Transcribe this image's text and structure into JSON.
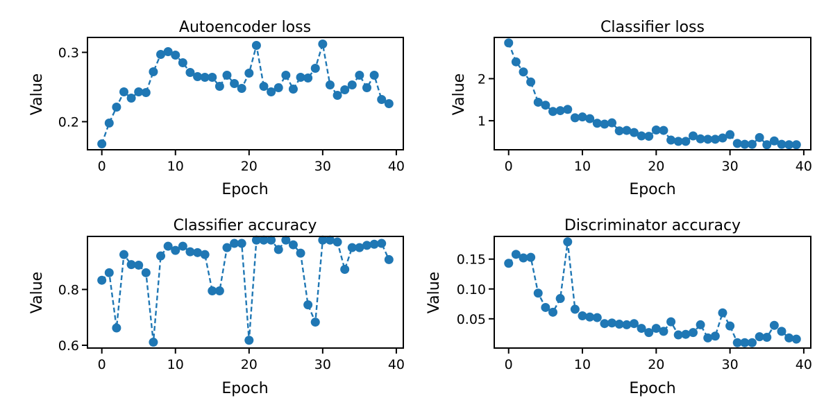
{
  "figure": {
    "background": "#ffffff"
  },
  "chart_data": [
    {
      "type": "line",
      "title": "Autoencoder loss",
      "xlabel": "Epoch",
      "ylabel": "Value",
      "xlim": [
        -1.95,
        40.95
      ],
      "ylim": [
        0.1595,
        0.3215
      ],
      "xticks": [
        0,
        10,
        20,
        30,
        40
      ],
      "xtick_labels": [
        "0",
        "10",
        "20",
        "30",
        "40"
      ],
      "yticks": [
        0.2,
        0.3
      ],
      "ytick_labels": [
        "0.2",
        "0.3"
      ],
      "color": "#1f77b4",
      "line_style": "dashed",
      "marker": "circle",
      "x": [
        0,
        1,
        2,
        3,
        4,
        5,
        6,
        7,
        8,
        9,
        10,
        11,
        12,
        13,
        14,
        15,
        16,
        17,
        18,
        19,
        20,
        21,
        22,
        23,
        24,
        25,
        26,
        27,
        28,
        29,
        30,
        31,
        32,
        33,
        34,
        35,
        36,
        37,
        38,
        39
      ],
      "values": [
        0.168,
        0.198,
        0.221,
        0.243,
        0.234,
        0.243,
        0.242,
        0.272,
        0.297,
        0.301,
        0.296,
        0.285,
        0.271,
        0.265,
        0.264,
        0.264,
        0.251,
        0.267,
        0.255,
        0.248,
        0.27,
        0.31,
        0.251,
        0.243,
        0.249,
        0.267,
        0.247,
        0.264,
        0.263,
        0.277,
        0.312,
        0.253,
        0.238,
        0.246,
        0.253,
        0.267,
        0.249,
        0.267,
        0.232,
        0.226
      ]
    },
    {
      "type": "line",
      "title": "Classifier loss",
      "xlabel": "Epoch",
      "ylabel": "Value",
      "xlim": [
        -1.95,
        40.95
      ],
      "ylim": [
        0.31,
        2.98
      ],
      "xticks": [
        0,
        10,
        20,
        30,
        40
      ],
      "xtick_labels": [
        "0",
        "10",
        "20",
        "30",
        "40"
      ],
      "yticks": [
        1,
        2
      ],
      "ytick_labels": [
        "1",
        "2"
      ],
      "color": "#1f77b4",
      "line_style": "dashed",
      "marker": "circle",
      "x": [
        0,
        1,
        2,
        3,
        4,
        5,
        6,
        7,
        8,
        9,
        10,
        11,
        12,
        13,
        14,
        15,
        16,
        17,
        18,
        19,
        20,
        21,
        22,
        23,
        24,
        25,
        26,
        27,
        28,
        29,
        30,
        31,
        32,
        33,
        34,
        35,
        36,
        37,
        38,
        39
      ],
      "values": [
        2.85,
        2.4,
        2.16,
        1.92,
        1.44,
        1.37,
        1.22,
        1.24,
        1.27,
        1.07,
        1.09,
        1.05,
        0.94,
        0.92,
        0.95,
        0.76,
        0.77,
        0.72,
        0.64,
        0.63,
        0.78,
        0.77,
        0.54,
        0.51,
        0.51,
        0.64,
        0.57,
        0.56,
        0.56,
        0.59,
        0.67,
        0.46,
        0.44,
        0.44,
        0.6,
        0.43,
        0.52,
        0.44,
        0.43,
        0.43
      ]
    },
    {
      "type": "line",
      "title": "Classifier accuracy",
      "xlabel": "Epoch",
      "ylabel": "Value",
      "xlim": [
        -1.95,
        40.95
      ],
      "ylim": [
        0.59,
        0.99
      ],
      "xticks": [
        0,
        10,
        20,
        30,
        40
      ],
      "xtick_labels": [
        "0",
        "10",
        "20",
        "30",
        "40"
      ],
      "yticks": [
        0.6,
        0.8
      ],
      "ytick_labels": [
        "0.6",
        "0.8"
      ],
      "color": "#1f77b4",
      "line_style": "dashed",
      "marker": "circle",
      "x": [
        0,
        1,
        2,
        3,
        4,
        5,
        6,
        7,
        8,
        9,
        10,
        11,
        12,
        13,
        14,
        15,
        16,
        17,
        18,
        19,
        20,
        21,
        22,
        23,
        24,
        25,
        26,
        27,
        28,
        29,
        30,
        31,
        32,
        33,
        34,
        35,
        36,
        37,
        38,
        39
      ],
      "values": [
        0.833,
        0.86,
        0.662,
        0.925,
        0.889,
        0.887,
        0.86,
        0.611,
        0.92,
        0.955,
        0.94,
        0.955,
        0.935,
        0.932,
        0.925,
        0.795,
        0.795,
        0.95,
        0.965,
        0.965,
        0.618,
        0.977,
        0.977,
        0.977,
        0.943,
        0.977,
        0.96,
        0.93,
        0.745,
        0.683,
        0.977,
        0.977,
        0.97,
        0.872,
        0.95,
        0.95,
        0.958,
        0.962,
        0.965,
        0.907
      ]
    },
    {
      "type": "line",
      "title": "Discriminator accuracy",
      "xlabel": "Epoch",
      "ylabel": "Value",
      "xlim": [
        -1.95,
        40.95
      ],
      "ylim": [
        0.001,
        0.188
      ],
      "xticks": [
        0,
        10,
        20,
        30,
        40
      ],
      "xtick_labels": [
        "0",
        "10",
        "20",
        "30",
        "40"
      ],
      "yticks": [
        0.05,
        0.1,
        0.15
      ],
      "ytick_labels": [
        "0.05",
        "0.10",
        "0.15"
      ],
      "color": "#1f77b4",
      "line_style": "dashed",
      "marker": "circle",
      "x": [
        0,
        1,
        2,
        3,
        4,
        5,
        6,
        7,
        8,
        9,
        10,
        11,
        12,
        13,
        14,
        15,
        16,
        17,
        18,
        19,
        20,
        21,
        22,
        23,
        24,
        25,
        26,
        27,
        28,
        29,
        30,
        31,
        32,
        33,
        34,
        35,
        36,
        37,
        38,
        39
      ],
      "values": [
        0.143,
        0.158,
        0.152,
        0.153,
        0.093,
        0.069,
        0.061,
        0.084,
        0.179,
        0.066,
        0.055,
        0.053,
        0.052,
        0.042,
        0.043,
        0.041,
        0.04,
        0.042,
        0.034,
        0.027,
        0.034,
        0.029,
        0.045,
        0.023,
        0.024,
        0.027,
        0.04,
        0.018,
        0.021,
        0.06,
        0.038,
        0.01,
        0.01,
        0.01,
        0.02,
        0.019,
        0.039,
        0.029,
        0.018,
        0.016
      ]
    }
  ]
}
